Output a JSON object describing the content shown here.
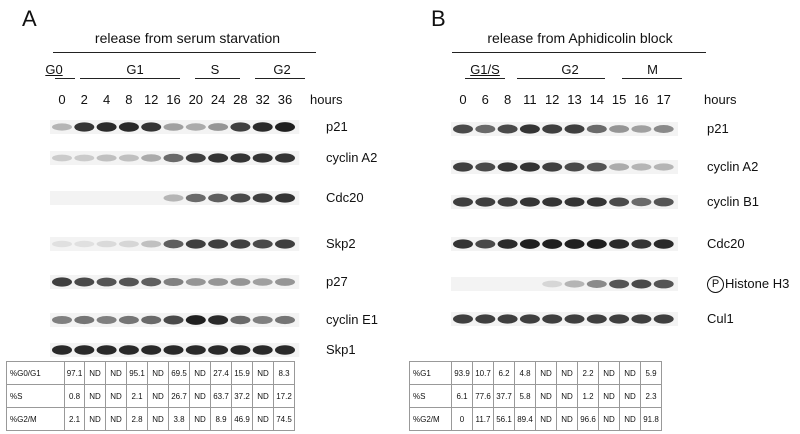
{
  "panelA": {
    "label": "A",
    "title": "release from serum starvation",
    "phases": [
      {
        "label": "G0",
        "underline": true,
        "x": 39,
        "w": 30
      },
      {
        "label": "G1",
        "underline": false,
        "x": 85,
        "w": 100
      },
      {
        "label": "S",
        "underline": false,
        "x": 195,
        "w": 40
      },
      {
        "label": "G2",
        "underline": false,
        "x": 257,
        "w": 50
      }
    ],
    "phase_lines": [
      [
        55,
        75
      ],
      [
        80,
        180
      ],
      [
        195,
        240
      ],
      [
        255,
        305
      ]
    ],
    "timepoints": [
      "0",
      "2",
      "4",
      "8",
      "12",
      "16",
      "20",
      "24",
      "28",
      "32",
      "36"
    ],
    "units": "hours",
    "proteins": [
      {
        "name": "p21",
        "bands": [
          0.25,
          0.85,
          0.9,
          0.9,
          0.85,
          0.35,
          0.3,
          0.4,
          0.8,
          0.9,
          0.95
        ]
      },
      {
        "name": "cyclin A2",
        "bands": [
          0.15,
          0.15,
          0.2,
          0.2,
          0.3,
          0.6,
          0.8,
          0.85,
          0.85,
          0.85,
          0.85
        ]
      },
      {
        "name": "Cdc20",
        "bands": [
          0,
          0,
          0,
          0,
          0,
          0.25,
          0.6,
          0.65,
          0.75,
          0.8,
          0.85
        ]
      },
      {
        "name": "Skp2",
        "bands": [
          0.05,
          0.05,
          0.08,
          0.1,
          0.2,
          0.65,
          0.8,
          0.8,
          0.8,
          0.75,
          0.8
        ]
      },
      {
        "name": "p27",
        "bands": [
          0.8,
          0.75,
          0.7,
          0.7,
          0.65,
          0.5,
          0.4,
          0.4,
          0.4,
          0.35,
          0.4
        ]
      },
      {
        "name": "cyclin E1",
        "bands": [
          0.5,
          0.55,
          0.5,
          0.55,
          0.6,
          0.75,
          0.95,
          0.9,
          0.6,
          0.5,
          0.55
        ]
      },
      {
        "name": "Skp1",
        "bands": [
          0.9,
          0.9,
          0.9,
          0.9,
          0.9,
          0.9,
          0.9,
          0.9,
          0.9,
          0.9,
          0.9
        ]
      }
    ],
    "flow_table": [
      [
        "%G0/G1",
        "97.1",
        "ND",
        "ND",
        "95.1",
        "ND",
        "69.5",
        "ND",
        "27.4",
        "15.9",
        "ND",
        "8.3"
      ],
      [
        "%S",
        "0.8",
        "ND",
        "ND",
        "2.1",
        "ND",
        "26.7",
        "ND",
        "63.7",
        "37.2",
        "ND",
        "17.2"
      ],
      [
        "%G2/M",
        "2.1",
        "ND",
        "ND",
        "2.8",
        "ND",
        "3.8",
        "ND",
        "8.9",
        "46.9",
        "ND",
        "74.5"
      ]
    ]
  },
  "panelB": {
    "label": "B",
    "title": "release from Aphidicolin block",
    "phases": [
      {
        "label": "G1/S",
        "underline": true,
        "x": 462,
        "w": 46
      },
      {
        "label": "G2",
        "underline": false,
        "x": 540,
        "w": 60
      },
      {
        "label": "M",
        "underline": false,
        "x": 625,
        "w": 55
      }
    ],
    "phase_lines": [
      [
        465,
        505
      ],
      [
        517,
        605
      ],
      [
        622,
        682
      ]
    ],
    "timepoints": [
      "0",
      "6",
      "8",
      "11",
      "12",
      "13",
      "14",
      "15",
      "16",
      "17"
    ],
    "units": "hours",
    "phospho_symbol": "P",
    "proteins": [
      {
        "name": "p21",
        "phospho": false,
        "bands": [
          0.75,
          0.6,
          0.75,
          0.85,
          0.8,
          0.8,
          0.6,
          0.4,
          0.35,
          0.45
        ]
      },
      {
        "name": "cyclin A2",
        "phospho": false,
        "bands": [
          0.8,
          0.75,
          0.85,
          0.85,
          0.8,
          0.75,
          0.7,
          0.3,
          0.25,
          0.25
        ]
      },
      {
        "name": "cyclin B1",
        "phospho": false,
        "bands": [
          0.8,
          0.8,
          0.8,
          0.85,
          0.85,
          0.85,
          0.85,
          0.75,
          0.6,
          0.7
        ]
      },
      {
        "name": "Cdc20",
        "phospho": false,
        "bands": [
          0.85,
          0.75,
          0.9,
          0.95,
          0.95,
          0.95,
          0.95,
          0.9,
          0.85,
          0.9
        ]
      },
      {
        "name": "Histone H3",
        "phospho": true,
        "bands": [
          0,
          0,
          0,
          0,
          0.1,
          0.25,
          0.45,
          0.7,
          0.75,
          0.7
        ]
      },
      {
        "name": "Cul1",
        "phospho": false,
        "bands": [
          0.8,
          0.8,
          0.8,
          0.8,
          0.8,
          0.8,
          0.8,
          0.8,
          0.8,
          0.8
        ]
      }
    ],
    "flow_table": [
      [
        "%G1",
        "93.9",
        "10.7",
        "6.2",
        "4.8",
        "ND",
        "ND",
        "2.2",
        "ND",
        "ND",
        "5.9"
      ],
      [
        "%S",
        "6.1",
        "77.6",
        "37.7",
        "5.8",
        "ND",
        "ND",
        "1.2",
        "ND",
        "ND",
        "2.3"
      ],
      [
        "%G2/M",
        "0",
        "11.7",
        "56.1",
        "89.4",
        "ND",
        "ND",
        "96.6",
        "ND",
        "ND",
        "91.8"
      ]
    ]
  }
}
